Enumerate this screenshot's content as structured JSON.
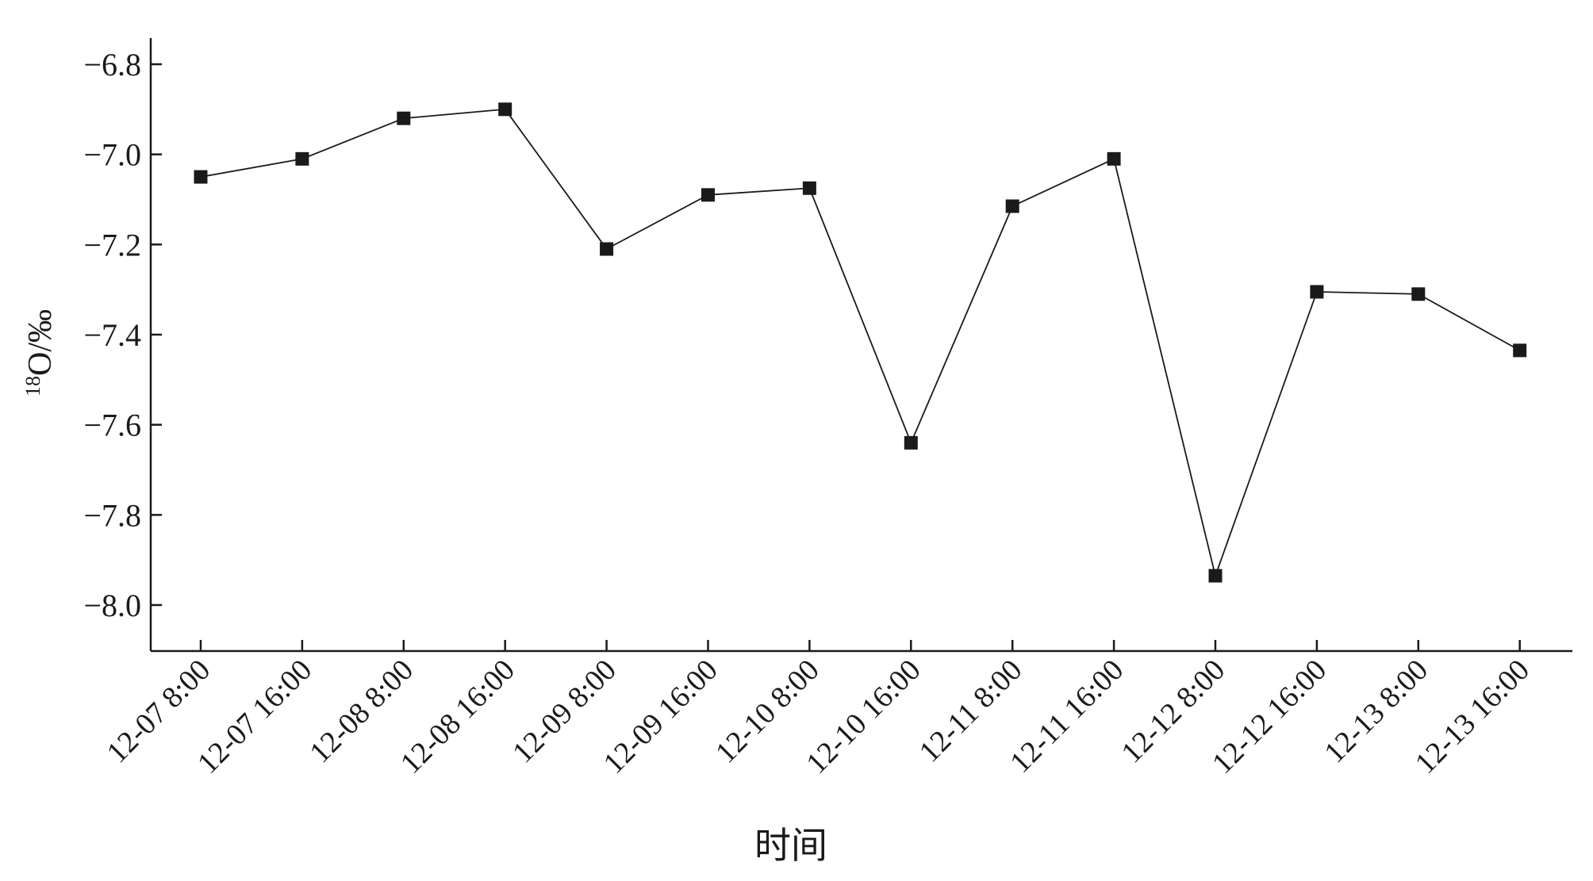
{
  "chart_data": {
    "type": "line",
    "title": "",
    "xlabel": "时间",
    "ylabel": {
      "superscript": "18",
      "text": "O/‰"
    },
    "ylim": [
      -8.1,
      -6.74
    ],
    "yticks": [
      -6.8,
      -7.0,
      -7.2,
      -7.4,
      -7.6,
      -7.8,
      -8.0
    ],
    "ytick_labels": [
      "−6.8",
      "−7.0",
      "−7.2",
      "−7.4",
      "−7.6",
      "−7.8",
      "−8.0"
    ],
    "grid": false,
    "legend": "none",
    "categories": [
      "12-07 8:00",
      "12-07 16:00",
      "12-08 8:00",
      "12-08 16:00",
      "12-09 8:00",
      "12-09 16:00",
      "12-10 8:00",
      "12-10 16:00",
      "12-11 8:00",
      "12-11 16:00",
      "12-12 8:00",
      "12-12 16:00",
      "12-13 8:00",
      "12-13 16:00"
    ],
    "series": [
      {
        "values": [
          -7.05,
          -7.01,
          -6.92,
          -6.9,
          -7.21,
          -7.09,
          -7.075,
          -7.64,
          -7.115,
          -7.01,
          -7.935,
          -7.305,
          -7.31,
          -7.435
        ],
        "color": "#1a1a1a",
        "marker": "square"
      }
    ]
  }
}
